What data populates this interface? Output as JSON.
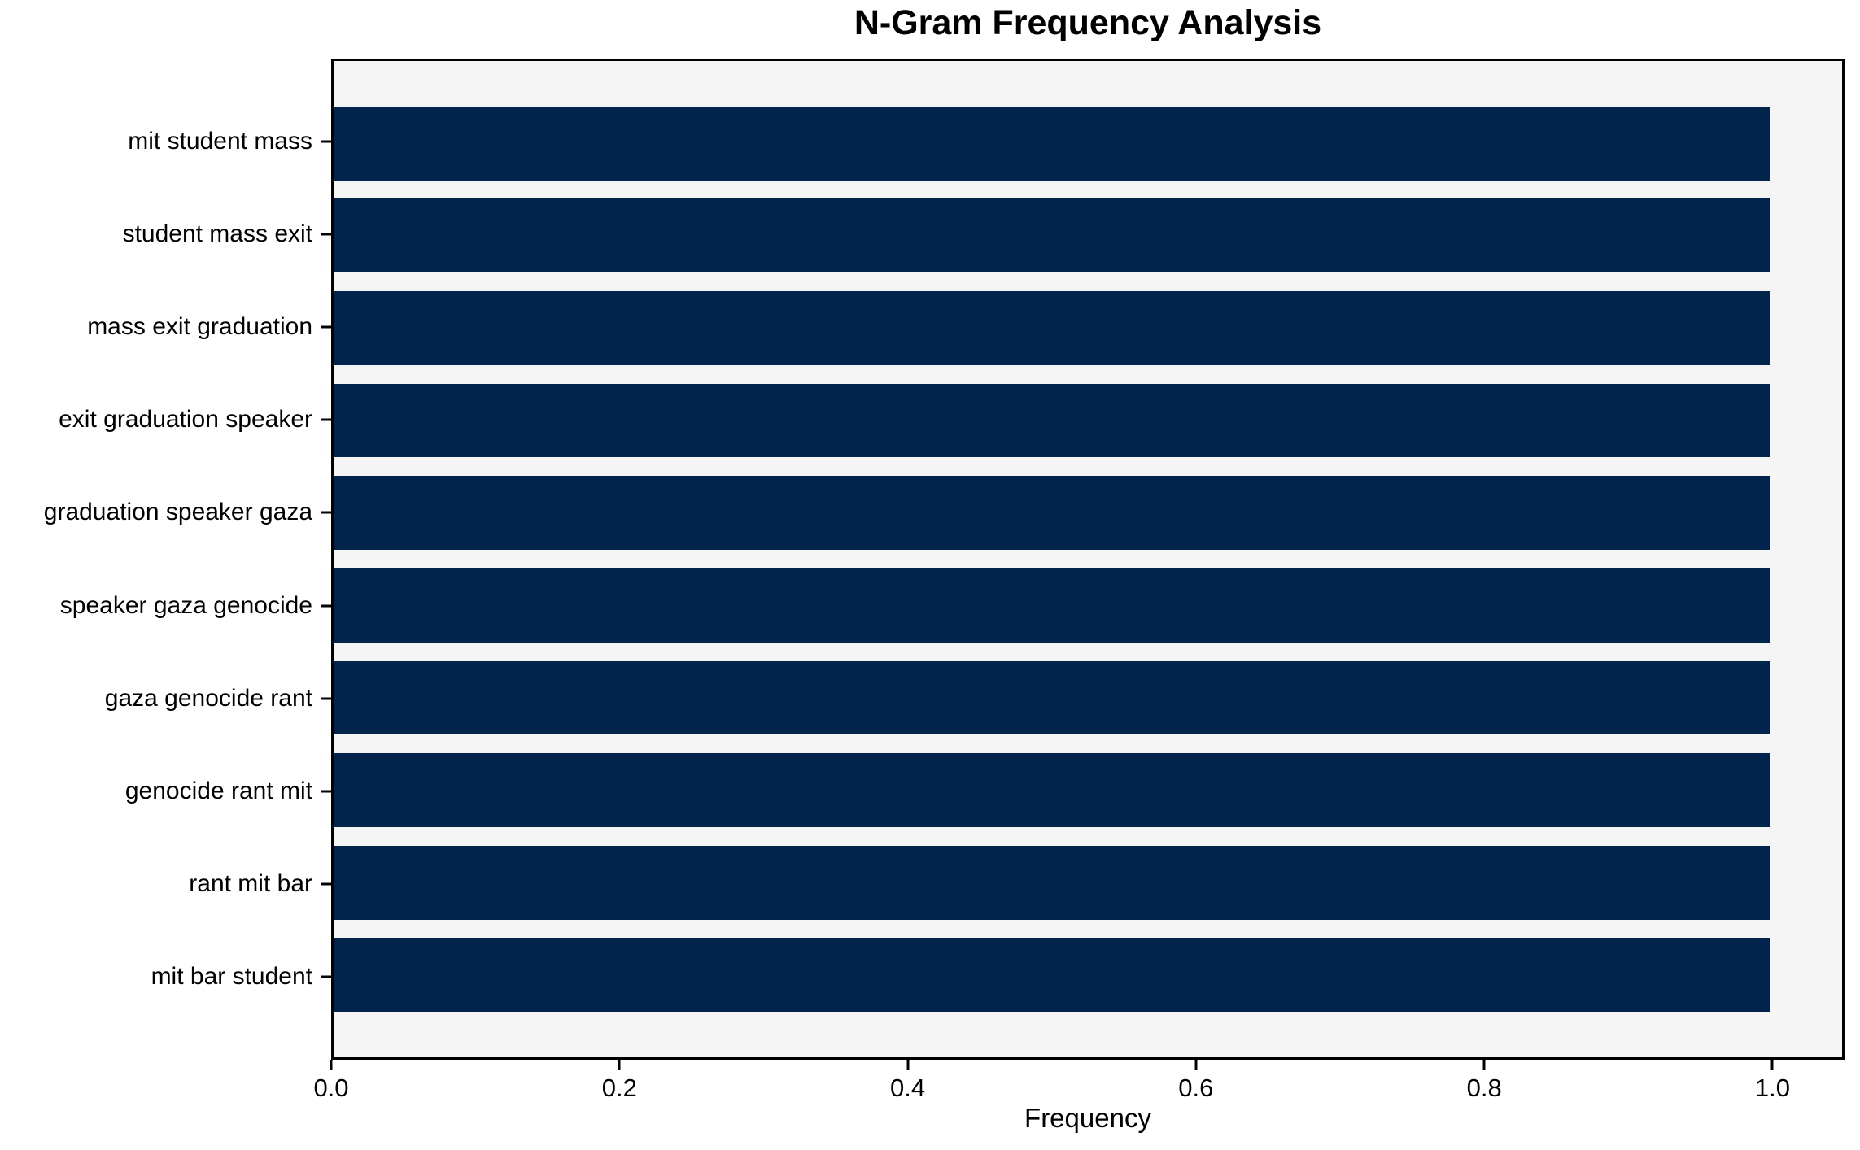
{
  "chart_data": {
    "type": "bar",
    "orientation": "horizontal",
    "title": "N-Gram Frequency Analysis",
    "xlabel": "Frequency",
    "ylabel": "",
    "categories": [
      "mit student mass",
      "student mass exit",
      "mass exit graduation",
      "exit graduation speaker",
      "graduation speaker gaza",
      "speaker gaza genocide",
      "gaza genocide rant",
      "genocide rant mit",
      "rant mit bar",
      "mit bar student"
    ],
    "values": [
      1.0,
      1.0,
      1.0,
      1.0,
      1.0,
      1.0,
      1.0,
      1.0,
      1.0,
      1.0
    ],
    "xlim": [
      0,
      1.05
    ],
    "xticks": [
      0.0,
      0.2,
      0.4,
      0.6,
      0.8,
      1.0
    ],
    "xtick_labels": [
      "0.0",
      "0.2",
      "0.4",
      "0.6",
      "0.8",
      "1.0"
    ],
    "bar_color": "#02234C",
    "plot_background": "#f5f5f5",
    "axis_color": "#000000",
    "grid": false,
    "legend_position": "none",
    "bar_thickness_ratio": 0.8,
    "category_margin_slots": 0.89
  }
}
